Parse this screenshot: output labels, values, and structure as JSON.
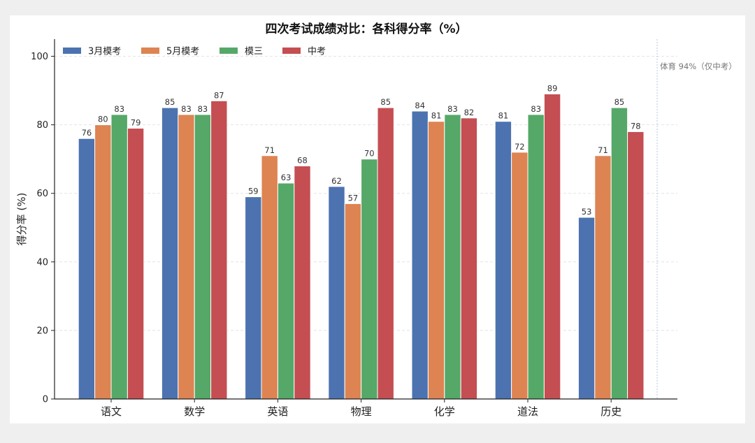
{
  "chart_data": {
    "type": "bar",
    "title": "四次考试成绩对比：各科得分率（%）",
    "xlabel": "",
    "ylabel": "得分率 (%)",
    "ylim": [
      0,
      105
    ],
    "yticks": [
      0,
      20,
      40,
      60,
      80,
      100
    ],
    "grid": "horizontal dashed",
    "legend_position": "top-left",
    "categories": [
      "语文",
      "数学",
      "英语",
      "物理",
      "化学",
      "道法",
      "历史"
    ],
    "series": [
      {
        "name": "3月模考",
        "color": "#4c72b0",
        "values": [
          76,
          85,
          59,
          62,
          84,
          81,
          53
        ]
      },
      {
        "name": "5月模考",
        "color": "#dd8452",
        "values": [
          80,
          83,
          71,
          57,
          81,
          72,
          71
        ]
      },
      {
        "name": "模三",
        "color": "#55a868",
        "values": [
          83,
          83,
          63,
          70,
          83,
          83,
          85
        ]
      },
      {
        "name": "中考",
        "color": "#c44e52",
        "values": [
          79,
          87,
          68,
          85,
          82,
          89,
          78
        ]
      }
    ],
    "annotation": "体育 94%（仅中考）"
  }
}
